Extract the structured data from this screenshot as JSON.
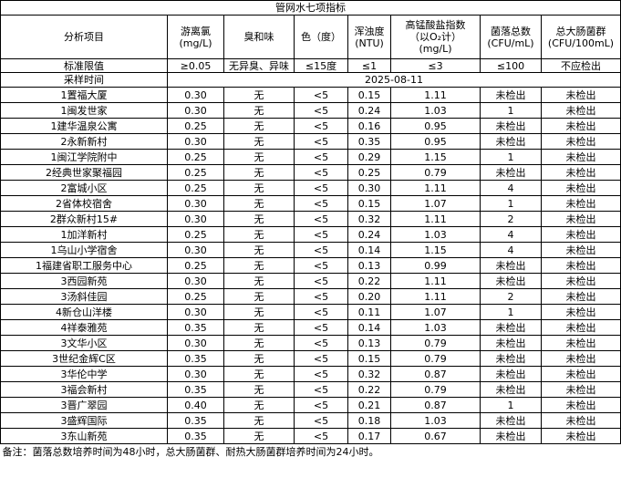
{
  "title": "管网水七项指标",
  "header": [
    "分析项目",
    "游离氯\n(mg/L)",
    "臭和味",
    "色（度）",
    "浑浊度\n(NTU)",
    "高锰酸盐指数\n（以O₂计）\n(mg/L)",
    "菌落总数\n(CFU/mL)",
    "总大肠菌群\n(CFU/100mL)"
  ],
  "standard": {
    "label": "标准限值",
    "values": [
      "≥0.05",
      "无异臭、异味",
      "≤15度",
      "≤1",
      "≤3",
      "≤100",
      "不应检出"
    ]
  },
  "sampling": {
    "label": "采样时间",
    "date": "2025-08-11"
  },
  "rows": [
    [
      "1置福大厦",
      "0.30",
      "无",
      "<5",
      "0.15",
      "1.11",
      "未检出",
      "未检出"
    ],
    [
      "1闽发世家",
      "0.30",
      "无",
      "<5",
      "0.24",
      "1.03",
      "1",
      "未检出"
    ],
    [
      "1建华温泉公寓",
      "0.25",
      "无",
      "<5",
      "0.16",
      "0.95",
      "未检出",
      "未检出"
    ],
    [
      "2永新新村",
      "0.30",
      "无",
      "<5",
      "0.35",
      "0.95",
      "未检出",
      "未检出"
    ],
    [
      "1闽江学院附中",
      "0.25",
      "无",
      "<5",
      "0.29",
      "1.15",
      "1",
      "未检出"
    ],
    [
      "2经典世家聚福园",
      "0.25",
      "无",
      "<5",
      "0.25",
      "0.79",
      "未检出",
      "未检出"
    ],
    [
      "2富城小区",
      "0.25",
      "无",
      "<5",
      "0.30",
      "1.11",
      "4",
      "未检出"
    ],
    [
      "2省体校宿舍",
      "0.30",
      "无",
      "<5",
      "0.15",
      "1.07",
      "1",
      "未检出"
    ],
    [
      "2群众新村15#",
      "0.30",
      "无",
      "<5",
      "0.32",
      "1.11",
      "2",
      "未检出"
    ],
    [
      "1加洋新村",
      "0.25",
      "无",
      "<5",
      "0.24",
      "1.03",
      "4",
      "未检出"
    ],
    [
      "1乌山小学宿舍",
      "0.30",
      "无",
      "<5",
      "0.14",
      "1.15",
      "4",
      "未检出"
    ],
    [
      "1福建省职工服务中心",
      "0.25",
      "无",
      "<5",
      "0.13",
      "0.99",
      "未检出",
      "未检出"
    ],
    [
      "3西园新苑",
      "0.30",
      "无",
      "<5",
      "0.22",
      "1.11",
      "未检出",
      "未检出"
    ],
    [
      "3汤斜佳园",
      "0.25",
      "无",
      "<5",
      "0.20",
      "1.11",
      "2",
      "未检出"
    ],
    [
      "4新仓山洋楼",
      "0.30",
      "无",
      "<5",
      "0.11",
      "1.07",
      "1",
      "未检出"
    ],
    [
      "4祥泰雅苑",
      "0.35",
      "无",
      "<5",
      "0.14",
      "1.03",
      "未检出",
      "未检出"
    ],
    [
      "3文华小区",
      "0.30",
      "无",
      "<5",
      "0.13",
      "0.79",
      "未检出",
      "未检出"
    ],
    [
      "3世纪金辉C区",
      "0.35",
      "无",
      "<5",
      "0.15",
      "0.79",
      "未检出",
      "未检出"
    ],
    [
      "3华伦中学",
      "0.30",
      "无",
      "<5",
      "0.32",
      "0.87",
      "未检出",
      "未检出"
    ],
    [
      "3福会新村",
      "0.35",
      "无",
      "<5",
      "0.22",
      "0.79",
      "未检出",
      "未检出"
    ],
    [
      "3晋广翠园",
      "0.40",
      "无",
      "<5",
      "0.21",
      "0.87",
      "1",
      "未检出"
    ],
    [
      "3盛辉国际",
      "0.35",
      "无",
      "<5",
      "0.18",
      "1.03",
      "未检出",
      "未检出"
    ],
    [
      "3东山新苑",
      "0.35",
      "无",
      "<5",
      "0.17",
      "0.67",
      "未检出",
      "未检出"
    ]
  ],
  "note": "备注：菌落总数培养时间为48小时，总大肠菌群、耐热大肠菌群培养时间为24小时。"
}
